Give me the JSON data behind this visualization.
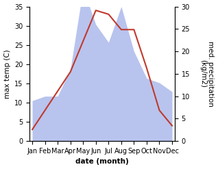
{
  "months": [
    "Jan",
    "Feb",
    "Mar",
    "Apr",
    "May",
    "Jun",
    "Jul",
    "Aug",
    "Sep",
    "Oct",
    "Nov",
    "Dec"
  ],
  "x": [
    0,
    1,
    2,
    3,
    4,
    5,
    6,
    7,
    8,
    9,
    10,
    11
  ],
  "temperature": [
    3,
    8,
    13,
    18,
    26,
    34,
    33,
    29,
    29,
    19,
    8,
    4
  ],
  "precipitation": [
    9,
    10,
    10,
    16,
    34,
    26,
    22,
    30,
    20,
    14,
    13,
    11
  ],
  "temp_color": "#c0392b",
  "precip_fill_color": "#b8c4ee",
  "temp_ylim": [
    0,
    35
  ],
  "precip_ylim": [
    0,
    30
  ],
  "temp_yticks": [
    0,
    5,
    10,
    15,
    20,
    25,
    30,
    35
  ],
  "precip_yticks": [
    0,
    5,
    10,
    15,
    20,
    25,
    30
  ],
  "xlabel": "date (month)",
  "ylabel_left": "max temp (C)",
  "ylabel_right": "med. precipitation\n(kg/m2)",
  "label_fontsize": 7.5,
  "tick_fontsize": 7
}
